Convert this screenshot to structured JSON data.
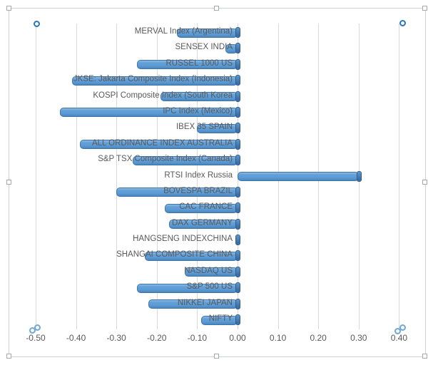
{
  "chart_data": {
    "type": "bar",
    "orientation": "horizontal",
    "title": "",
    "xlabel": "",
    "ylabel": "",
    "legend": false,
    "grid": true,
    "xlim": [
      -0.5,
      0.41
    ],
    "categories": [
      "MERVAL Index (Argentina)",
      "SENSEX INDIA",
      "RUSSEL 1000 US",
      "JKSE: Jakarta Composite Index (Indonesia)",
      "KOSPI Composite Index (South Korea",
      "IPC Index (Mexico)",
      "IBEX 35 SPAIN",
      "ALL ORDINANCE INDEX AUSTRALIA",
      "S&P TSX Composite Index (Canada)",
      "RTSI Index Russia",
      "BOVESPA BRAZIL",
      "CAC FRANCE",
      "DAX GERMANY",
      "HANGSENG INDEXCHINA",
      "SHANGAI COMPOSITE CHINA",
      "NASDAQ US",
      "S&P 500 US",
      "NIKKEI JAPAN",
      "NIFTY"
    ],
    "values": [
      -0.15,
      -0.03,
      -0.25,
      -0.41,
      -0.19,
      -0.44,
      -0.1,
      -0.39,
      -0.26,
      0.3,
      -0.3,
      -0.18,
      -0.17,
      0.0,
      -0.23,
      -0.13,
      -0.25,
      -0.22,
      -0.09
    ],
    "x_ticks": [
      {
        "v": -0.5,
        "label": "-0.50"
      },
      {
        "v": -0.4,
        "label": "-0.40"
      },
      {
        "v": -0.3,
        "label": "-0.30"
      },
      {
        "v": -0.2,
        "label": "-0.20"
      },
      {
        "v": -0.1,
        "label": "-0.10"
      },
      {
        "v": 0.0,
        "label": "0.00"
      },
      {
        "v": 0.1,
        "label": "0.10"
      },
      {
        "v": 0.2,
        "label": "0.20"
      },
      {
        "v": 0.3,
        "label": "0.30"
      },
      {
        "v": 0.4,
        "label": "0.40"
      }
    ],
    "colors": {
      "bar_fill": "#5B9BD5",
      "bar_edge": "#41719C",
      "bar_cap": "#3D6FA5",
      "gridline": "#D9D9D9",
      "axis_text": "#595959",
      "selection_ring": "#2E75B6",
      "selection_frame": "#CDD2D8"
    }
  }
}
